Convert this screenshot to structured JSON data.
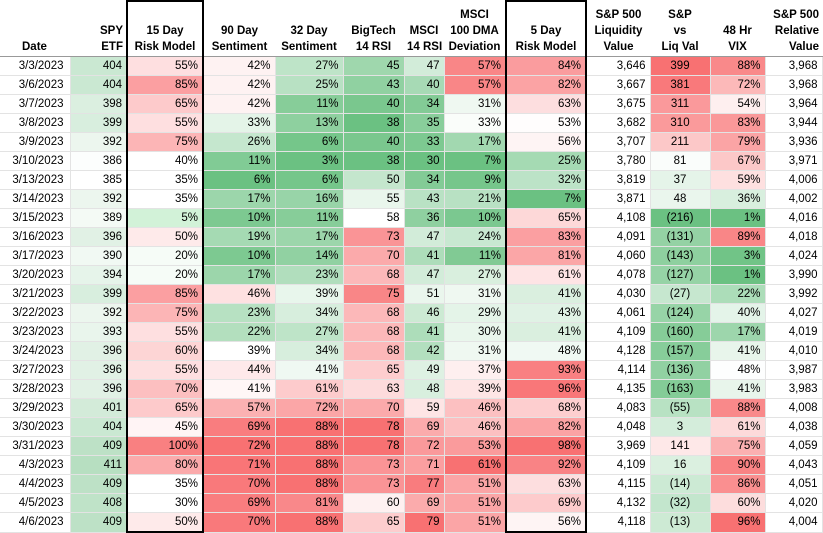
{
  "headers": {
    "date": "Date",
    "spy": [
      "SPY",
      "ETF"
    ],
    "risk15": [
      "15 Day",
      "Risk Model"
    ],
    "sent90": [
      "90 Day",
      "Sentiment"
    ],
    "sent32": [
      "32 Day",
      "Sentiment"
    ],
    "bigtech": [
      "BigTech",
      "14 RSI"
    ],
    "msci14": [
      "MSCI",
      "14 RSI"
    ],
    "msci100": [
      "MSCI",
      "100 DMA",
      "Deviation"
    ],
    "risk5": [
      "5 Day",
      "Risk Model"
    ],
    "liq": [
      "S&P 500",
      "Liquidity",
      "Value"
    ],
    "spliq": [
      "S&P",
      "vs",
      "Liq Val"
    ],
    "vix": [
      "48 Hr",
      "VIX"
    ],
    "rel": [
      "S&P 500",
      "Relative",
      "Value"
    ]
  },
  "columns": [
    "date",
    "spy",
    "risk15",
    "sent90",
    "sent32",
    "bigtech",
    "msci14",
    "msci100",
    "risk5",
    "liq",
    "spliq",
    "vix",
    "rel"
  ],
  "rows": [
    {
      "date": "3/3/2023",
      "spy": "404",
      "risk15": "55%",
      "sent90": "42%",
      "sent32": "27%",
      "bigtech": "45",
      "msci14": "47",
      "msci100": "57%",
      "risk5": "84%",
      "liq": "3,646",
      "spliq": "399",
      "vix": "88%",
      "rel": "3,968"
    },
    {
      "date": "3/6/2023",
      "spy": "404",
      "risk15": "85%",
      "sent90": "42%",
      "sent32": "25%",
      "bigtech": "43",
      "msci14": "40",
      "msci100": "57%",
      "risk5": "82%",
      "liq": "3,667",
      "spliq": "381",
      "vix": "72%",
      "rel": "3,968"
    },
    {
      "date": "3/7/2023",
      "spy": "398",
      "risk15": "65%",
      "sent90": "42%",
      "sent32": "11%",
      "bigtech": "40",
      "msci14": "34",
      "msci100": "31%",
      "risk5": "63%",
      "liq": "3,675",
      "spliq": "311",
      "vix": "54%",
      "rel": "3,964"
    },
    {
      "date": "3/8/2023",
      "spy": "399",
      "risk15": "55%",
      "sent90": "33%",
      "sent32": "13%",
      "bigtech": "38",
      "msci14": "35",
      "msci100": "33%",
      "risk5": "53%",
      "liq": "3,682",
      "spliq": "310",
      "vix": "83%",
      "rel": "3,944"
    },
    {
      "date": "3/9/2023",
      "spy": "392",
      "risk15": "75%",
      "sent90": "26%",
      "sent32": "6%",
      "bigtech": "40",
      "msci14": "33",
      "msci100": "17%",
      "risk5": "56%",
      "liq": "3,707",
      "spliq": "211",
      "vix": "79%",
      "rel": "3,936"
    },
    {
      "date": "3/10/2023",
      "spy": "386",
      "risk15": "40%",
      "sent90": "11%",
      "sent32": "3%",
      "bigtech": "38",
      "msci14": "30",
      "msci100": "7%",
      "risk5": "25%",
      "liq": "3,780",
      "spliq": "81",
      "vix": "67%",
      "rel": "3,971"
    },
    {
      "date": "3/13/2023",
      "spy": "385",
      "risk15": "35%",
      "sent90": "6%",
      "sent32": "6%",
      "bigtech": "50",
      "msci14": "34",
      "msci100": "9%",
      "risk5": "32%",
      "liq": "3,819",
      "spliq": "37",
      "vix": "59%",
      "rel": "4,006"
    },
    {
      "date": "3/14/2023",
      "spy": "392",
      "risk15": "35%",
      "sent90": "17%",
      "sent32": "16%",
      "bigtech": "55",
      "msci14": "43",
      "msci100": "21%",
      "risk5": "7%",
      "liq": "3,871",
      "spliq": "48",
      "vix": "36%",
      "rel": "4,002"
    },
    {
      "date": "3/15/2023",
      "spy": "389",
      "risk15": "5%",
      "sent90": "10%",
      "sent32": "11%",
      "bigtech": "58",
      "msci14": "36",
      "msci100": "10%",
      "risk5": "65%",
      "liq": "4,108",
      "spliq": "(216)",
      "vix": "1%",
      "rel": "4,016"
    },
    {
      "date": "3/16/2023",
      "spy": "396",
      "risk15": "50%",
      "sent90": "19%",
      "sent32": "17%",
      "bigtech": "73",
      "msci14": "47",
      "msci100": "24%",
      "risk5": "83%",
      "liq": "4,091",
      "spliq": "(131)",
      "vix": "89%",
      "rel": "4,018"
    },
    {
      "date": "3/17/2023",
      "spy": "390",
      "risk15": "20%",
      "sent90": "10%",
      "sent32": "14%",
      "bigtech": "70",
      "msci14": "41",
      "msci100": "11%",
      "risk5": "81%",
      "liq": "4,060",
      "spliq": "(143)",
      "vix": "3%",
      "rel": "4,024"
    },
    {
      "date": "3/20/2023",
      "spy": "394",
      "risk15": "20%",
      "sent90": "17%",
      "sent32": "23%",
      "bigtech": "68",
      "msci14": "47",
      "msci100": "27%",
      "risk5": "61%",
      "liq": "4,078",
      "spliq": "(127)",
      "vix": "1%",
      "rel": "3,990"
    },
    {
      "date": "3/21/2023",
      "spy": "399",
      "risk15": "85%",
      "sent90": "46%",
      "sent32": "39%",
      "bigtech": "75",
      "msci14": "51",
      "msci100": "31%",
      "risk5": "41%",
      "liq": "4,030",
      "spliq": "(27)",
      "vix": "22%",
      "rel": "3,992"
    },
    {
      "date": "3/22/2023",
      "spy": "392",
      "risk15": "75%",
      "sent90": "23%",
      "sent32": "34%",
      "bigtech": "68",
      "msci14": "46",
      "msci100": "29%",
      "risk5": "43%",
      "liq": "4,061",
      "spliq": "(124)",
      "vix": "40%",
      "rel": "4,027"
    },
    {
      "date": "3/23/2023",
      "spy": "393",
      "risk15": "55%",
      "sent90": "22%",
      "sent32": "27%",
      "bigtech": "68",
      "msci14": "41",
      "msci100": "30%",
      "risk5": "41%",
      "liq": "4,109",
      "spliq": "(160)",
      "vix": "17%",
      "rel": "4,019"
    },
    {
      "date": "3/24/2023",
      "spy": "396",
      "risk15": "60%",
      "sent90": "39%",
      "sent32": "34%",
      "bigtech": "68",
      "msci14": "42",
      "msci100": "31%",
      "risk5": "48%",
      "liq": "4,128",
      "spliq": "(157)",
      "vix": "41%",
      "rel": "4,010"
    },
    {
      "date": "3/27/2023",
      "spy": "396",
      "risk15": "55%",
      "sent90": "44%",
      "sent32": "41%",
      "bigtech": "65",
      "msci14": "49",
      "msci100": "37%",
      "risk5": "93%",
      "liq": "4,114",
      "spliq": "(136)",
      "vix": "48%",
      "rel": "3,987"
    },
    {
      "date": "3/28/2023",
      "spy": "396",
      "risk15": "70%",
      "sent90": "41%",
      "sent32": "61%",
      "bigtech": "63",
      "msci14": "48",
      "msci100": "39%",
      "risk5": "96%",
      "liq": "4,135",
      "spliq": "(163)",
      "vix": "41%",
      "rel": "3,983"
    },
    {
      "date": "3/29/2023",
      "spy": "401",
      "risk15": "65%",
      "sent90": "57%",
      "sent32": "72%",
      "bigtech": "70",
      "msci14": "59",
      "msci100": "46%",
      "risk5": "68%",
      "liq": "4,083",
      "spliq": "(55)",
      "vix": "88%",
      "rel": "4,008"
    },
    {
      "date": "3/30/2023",
      "spy": "404",
      "risk15": "45%",
      "sent90": "69%",
      "sent32": "88%",
      "bigtech": "78",
      "msci14": "69",
      "msci100": "46%",
      "risk5": "82%",
      "liq": "4,048",
      "spliq": "3",
      "vix": "61%",
      "rel": "4,038"
    },
    {
      "date": "3/31/2023",
      "spy": "409",
      "risk15": "100%",
      "sent90": "72%",
      "sent32": "88%",
      "bigtech": "78",
      "msci14": "72",
      "msci100": "53%",
      "risk5": "98%",
      "liq": "3,969",
      "spliq": "141",
      "vix": "75%",
      "rel": "4,059"
    },
    {
      "date": "4/3/2023",
      "spy": "411",
      "risk15": "80%",
      "sent90": "71%",
      "sent32": "88%",
      "bigtech": "73",
      "msci14": "71",
      "msci100": "61%",
      "risk5": "92%",
      "liq": "4,109",
      "spliq": "16",
      "vix": "90%",
      "rel": "4,043"
    },
    {
      "date": "4/4/2023",
      "spy": "409",
      "risk15": "35%",
      "sent90": "70%",
      "sent32": "88%",
      "bigtech": "73",
      "msci14": "77",
      "msci100": "51%",
      "risk5": "63%",
      "liq": "4,115",
      "spliq": "(14)",
      "vix": "86%",
      "rel": "4,051"
    },
    {
      "date": "4/5/2023",
      "spy": "408",
      "risk15": "30%",
      "sent90": "69%",
      "sent32": "81%",
      "bigtech": "60",
      "msci14": "69",
      "msci100": "51%",
      "risk5": "69%",
      "liq": "4,132",
      "spliq": "(32)",
      "vix": "60%",
      "rel": "4,020"
    },
    {
      "date": "4/6/2023",
      "spy": "409",
      "risk15": "50%",
      "sent90": "70%",
      "sent32": "88%",
      "bigtech": "65",
      "msci14": "79",
      "msci100": "51%",
      "risk5": "56%",
      "liq": "4,118",
      "spliq": "(13)",
      "vix": "96%",
      "rel": "4,004"
    }
  ],
  "colors": {
    "red_high": "#f8696b",
    "green_high": "#63be7b",
    "white_mid": "#ffffff"
  },
  "color_scales": {
    "spy": {
      "min": 385,
      "max": 411,
      "low": "#ffffff",
      "high": "#b7dfc1"
    },
    "risk15": {
      "min": 0,
      "max": 100,
      "low": "#ffffff",
      "high": "#f8696b",
      "green_max": 20
    },
    "sent90": {
      "min": 6,
      "max": 72,
      "low": "#63be7b",
      "high": "#f8696b"
    },
    "sent32": {
      "min": 3,
      "max": 88,
      "low": "#63be7b",
      "high": "#f8696b"
    },
    "bigtech": {
      "min": 38,
      "max": 78,
      "low": "#63be7b",
      "high": "#f8696b"
    },
    "msci14": {
      "min": 30,
      "max": 79,
      "low": "#63be7b",
      "high": "#f8696b"
    },
    "msci100": {
      "min": 7,
      "max": 61,
      "low": "#63be7b",
      "high": "#f8696b"
    },
    "risk5": {
      "min": 7,
      "max": 98,
      "low": "#63be7b",
      "high": "#f8696b"
    },
    "spliq": {
      "min": -216,
      "max": 399,
      "low": "#63be7b",
      "high": "#f8696b"
    },
    "vix": {
      "min": 1,
      "max": 96,
      "low": "#63be7b",
      "high": "#f8696b"
    }
  }
}
